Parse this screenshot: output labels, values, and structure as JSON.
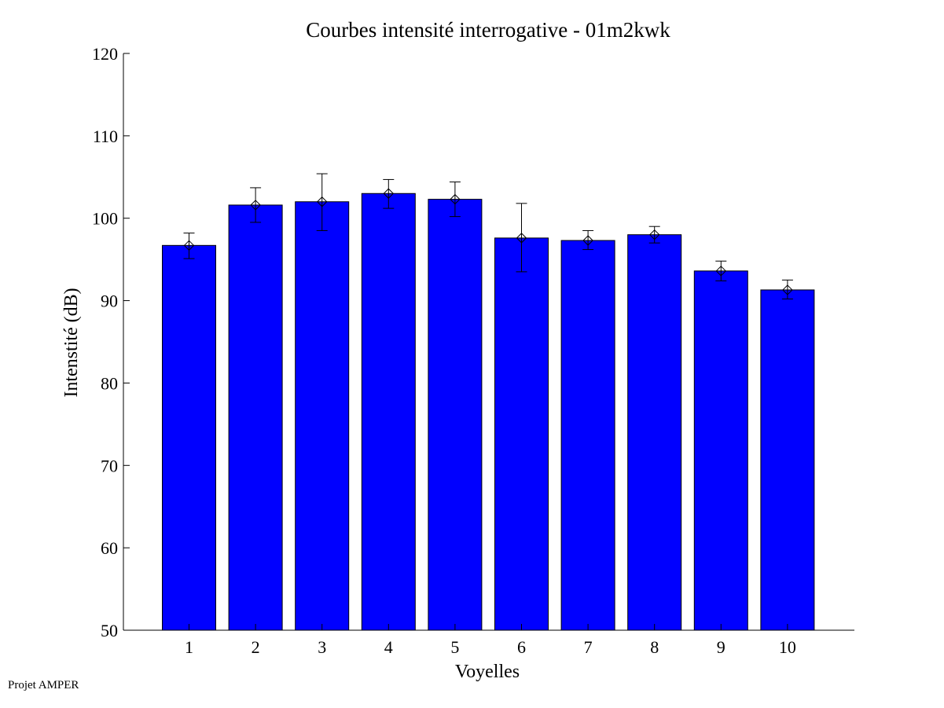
{
  "chart_data": {
    "type": "bar",
    "title": "Courbes intensité interrogative - 01m2kwk",
    "xlabel": "Voyelles",
    "ylabel": "Intenstité (dB)",
    "categories": [
      "1",
      "2",
      "3",
      "4",
      "5",
      "6",
      "7",
      "8",
      "9",
      "10"
    ],
    "values": [
      96.7,
      101.6,
      102.0,
      103.0,
      102.3,
      97.6,
      97.3,
      98.0,
      93.6,
      91.3
    ],
    "error_low": [
      95.1,
      99.5,
      98.5,
      101.2,
      100.2,
      93.5,
      96.2,
      97.0,
      92.4,
      90.2
    ],
    "error_high": [
      98.2,
      103.7,
      105.4,
      104.7,
      104.4,
      101.8,
      98.5,
      99.0,
      94.8,
      92.5
    ],
    "markers": [
      96.7,
      101.6,
      102.0,
      103.0,
      102.3,
      97.6,
      97.3,
      98.0,
      93.6,
      91.3
    ],
    "ylim": [
      50,
      120
    ],
    "yticks": [
      50,
      60,
      70,
      80,
      90,
      100,
      110,
      120
    ],
    "grid": false,
    "bar_color": "#0000ff"
  },
  "footer": {
    "text": "Projet AMPER"
  }
}
